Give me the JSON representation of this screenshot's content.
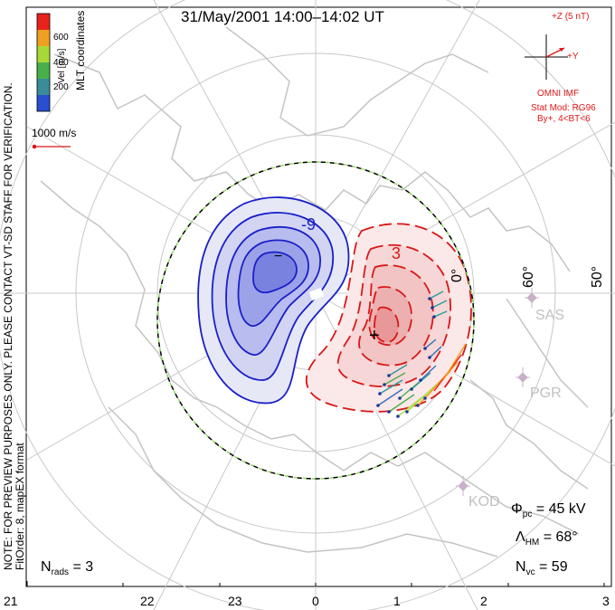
{
  "title": "31/May/2001 14:00–14:02 UT",
  "colorbar": {
    "title": "Vel [m/s]",
    "ticks": [
      "600",
      "400",
      "200"
    ],
    "colors": [
      "#e8231e",
      "#f0a020",
      "#a8d838",
      "#48b04a",
      "#3a8c9a",
      "#2a4ed0"
    ]
  },
  "coordinates_label": "MLT coordinates",
  "vector_scale_label": "1000 m/s",
  "imf": {
    "z_label": "+Z (5 nT)",
    "y_label": "+Y",
    "source": "OMNI IMF",
    "stat_mod": "Stat Mod: RG96",
    "condition": "By+, 4<BT<6"
  },
  "contour_labels": {
    "negative": "-9",
    "positive": "3"
  },
  "potential_markers": {
    "min": "−",
    "max": "+"
  },
  "latitude_labels": [
    "0°",
    "60°",
    "50°"
  ],
  "radars": [
    "SAS",
    "PGR",
    "KOD"
  ],
  "stats": {
    "phi_pc": {
      "symbol": "Φ",
      "sub": "pc",
      "value": "= 45 kV"
    },
    "lambda_hm": {
      "symbol": "Λ",
      "sub": "HM",
      "value": "= 68°"
    },
    "n_vc": {
      "symbol": "N",
      "sub": "vc",
      "value": "= 59"
    },
    "n_rads": {
      "symbol": "N",
      "sub": "rads",
      "value": "= 3"
    }
  },
  "note_line1": "NOTE: FOR PREVIEW PURPOSES ONLY. PLEASE CONTACT VT-SD STAFF FOR VERIFICATION.",
  "note_line2": "FitOrder: 8, mapEX format",
  "mlt_ticks": [
    "21",
    "22",
    "23",
    "0",
    "1",
    "2",
    "3"
  ]
}
